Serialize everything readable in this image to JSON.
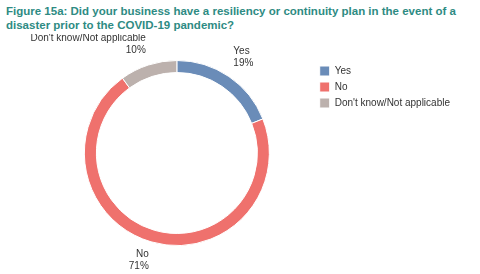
{
  "chart_data": {
    "type": "doughnut",
    "title": "Figure 15a: Did your business have a resiliency or continuity plan in the event of a disaster prior to the COVID-19 pandemic?",
    "categories": [
      "Yes",
      "No",
      "Don't know/Not applicable"
    ],
    "values": [
      19,
      71,
      10
    ],
    "value_labels": [
      "19%",
      "71%",
      "10%"
    ],
    "colors": [
      "#6a8cb8",
      "#ef716d",
      "#bcb1ad"
    ],
    "legend": "top right",
    "data_labels": true
  }
}
